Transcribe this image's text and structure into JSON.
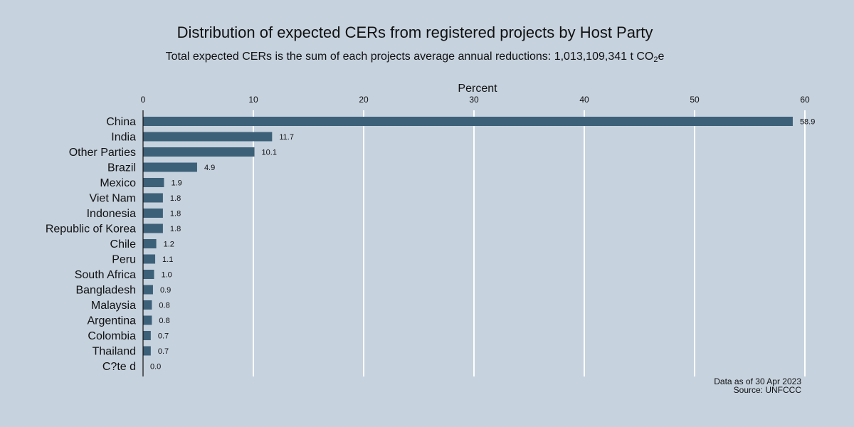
{
  "colors": {
    "background": "#c6d2de",
    "bar": "#3d6079",
    "gridline": "#ffffff",
    "axis": "#111111"
  },
  "chart_data": {
    "type": "bar",
    "orientation": "horizontal",
    "title": "Distribution of expected CERs from registered projects by Host Party",
    "subtitle": {
      "text": "Total expected CERs is the sum of each projects average annual reductions: 1,013,109,341 t CO",
      "subscript": "2",
      "suffix": "e"
    },
    "xlabel": "Percent",
    "ylabel": "",
    "xlim": [
      0,
      60
    ],
    "xticks": [
      "0",
      "10",
      "20",
      "30",
      "40",
      "50",
      "60"
    ],
    "axis_position": "top",
    "grid": true,
    "categories": [
      "China",
      "India",
      "Other Parties",
      "Brazil",
      "Mexico",
      "Viet Nam",
      "Indonesia",
      "Republic of Korea",
      "Chile",
      "Peru",
      "South Africa",
      "Bangladesh",
      "Malaysia",
      "Argentina",
      "Colombia",
      "Thailand",
      "C?te d"
    ],
    "values": [
      58.9,
      11.7,
      10.1,
      4.9,
      1.9,
      1.8,
      1.8,
      1.8,
      1.2,
      1.1,
      1.0,
      0.9,
      0.8,
      0.8,
      0.7,
      0.7,
      0.0
    ],
    "data_labels": [
      "58.9",
      "11.7",
      "10.1",
      "4.9",
      "1.9",
      "1.8",
      "1.8",
      "1.8",
      "1.2",
      "1.1",
      "1.0",
      "0.9",
      "0.8",
      "0.8",
      "0.7",
      "0.7",
      "0.0"
    ],
    "notes": [
      "Data as of 30 Apr 2023",
      "Source: UNFCCC"
    ]
  }
}
